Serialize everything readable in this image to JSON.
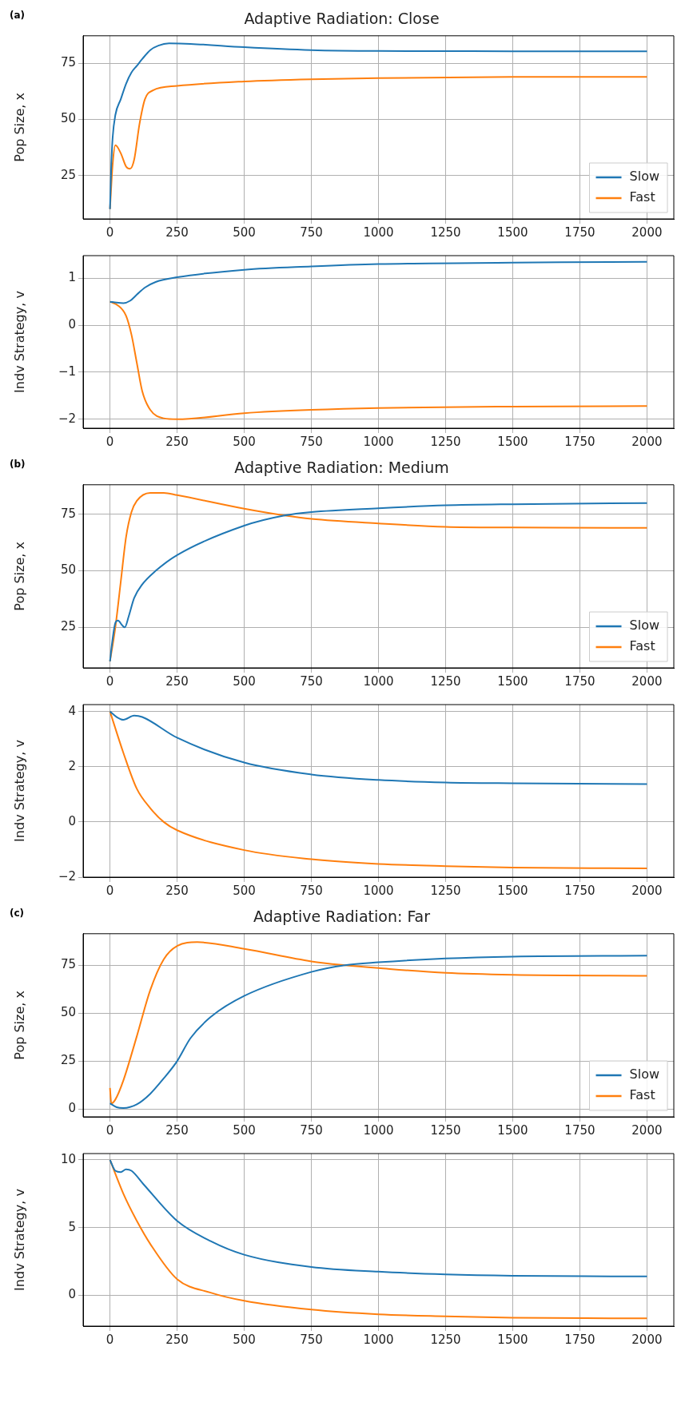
{
  "chart_data": [
    {
      "type": "line",
      "title": "Adaptive Radiation: Close",
      "ylabel": "Pop Size, x",
      "annotations": [
        "(a)"
      ],
      "xlim": [
        -100,
        2100
      ],
      "xticks": [
        0,
        250,
        500,
        750,
        1000,
        1250,
        1500,
        1750,
        2000
      ],
      "ylim": [
        5.6,
        87.4
      ],
      "yticks": [
        25,
        50,
        75
      ],
      "grid": true,
      "legend": "bottom right",
      "series": [
        {
          "name": "Slow",
          "color": "#1f77b4",
          "x": [
            0,
            5,
            10,
            20,
            40,
            60,
            80,
            100,
            120,
            150,
            180,
            220,
            300,
            500,
            750,
            1000,
            1500,
            2000
          ],
          "values": [
            10,
            30,
            42,
            52,
            59,
            66,
            71,
            74,
            77,
            81,
            83,
            84,
            83.8,
            82.3,
            81,
            80.6,
            80.5,
            80.5
          ]
        },
        {
          "name": "Fast",
          "color": "#ff7f0e",
          "x": [
            0,
            10,
            20,
            40,
            60,
            75,
            90,
            110,
            130,
            160,
            250,
            500,
            750,
            1000,
            1500,
            2000
          ],
          "values": [
            10,
            30,
            38.5,
            35,
            29,
            28,
            32,
            48,
            59,
            63,
            65,
            67,
            68,
            68.5,
            69,
            69
          ]
        }
      ]
    },
    {
      "type": "line",
      "ylabel": "Indv Strategy, v",
      "xlim": [
        -100,
        2100
      ],
      "xticks": [
        0,
        250,
        500,
        750,
        1000,
        1250,
        1500,
        1750,
        2000
      ],
      "ylim": [
        -2.19,
        1.48
      ],
      "yticks": [
        -2,
        -1,
        0,
        1
      ],
      "grid": true,
      "series": [
        {
          "color": "#1f77b4",
          "x": [
            0,
            25,
            50,
            75,
            100,
            130,
            170,
            250,
            500,
            750,
            1000,
            1500,
            2000
          ],
          "values": [
            0.5,
            0.48,
            0.47,
            0.52,
            0.65,
            0.8,
            0.92,
            1.02,
            1.18,
            1.25,
            1.3,
            1.33,
            1.35
          ]
        },
        {
          "color": "#ff7f0e",
          "x": [
            0,
            30,
            60,
            80,
            100,
            120,
            150,
            200,
            250,
            500,
            750,
            1000,
            1500,
            2000
          ],
          "values": [
            0.5,
            0.42,
            0.2,
            -0.2,
            -0.8,
            -1.4,
            -1.8,
            -1.98,
            -2.0,
            -1.87,
            -1.8,
            -1.76,
            -1.73,
            -1.72
          ]
        }
      ]
    },
    {
      "type": "line",
      "title": "Adaptive Radiation: Medium",
      "ylabel": "Pop Size, x",
      "annotations": [
        "(b)"
      ],
      "xlim": [
        -100,
        2100
      ],
      "xticks": [
        0,
        250,
        500,
        750,
        1000,
        1250,
        1500,
        1750,
        2000
      ],
      "ylim": [
        7.1,
        88.1
      ],
      "yticks": [
        25,
        50,
        75
      ],
      "grid": true,
      "legend": "bottom right",
      "series": [
        {
          "name": "Slow",
          "color": "#1f77b4",
          "x": [
            0,
            10,
            20,
            30,
            45,
            55,
            70,
            90,
            120,
            170,
            250,
            500,
            650,
            750,
            1000,
            1250,
            1500,
            2000
          ],
          "values": [
            10,
            20,
            27,
            28,
            26,
            25,
            30,
            38,
            44,
            50,
            57,
            70,
            74.5,
            76,
            77.7,
            79,
            79.5,
            80
          ]
        },
        {
          "name": "Fast",
          "color": "#ff7f0e",
          "x": [
            0,
            20,
            40,
            60,
            80,
            100,
            150,
            200,
            250,
            500,
            650,
            750,
            1000,
            1250,
            1500,
            2000
          ],
          "values": [
            10,
            25,
            45,
            65,
            76,
            81,
            84.5,
            84.5,
            83.5,
            77.5,
            74.5,
            73,
            71,
            69.5,
            69.2,
            69
          ]
        }
      ]
    },
    {
      "type": "line",
      "ylabel": "Indv Strategy, v",
      "xlim": [
        -100,
        2100
      ],
      "xticks": [
        0,
        250,
        500,
        750,
        1000,
        1250,
        1500,
        1750,
        2000
      ],
      "ylim": [
        -2.0,
        4.25
      ],
      "yticks": [
        -2,
        0,
        2,
        4
      ],
      "grid": true,
      "series": [
        {
          "color": "#1f77b4",
          "x": [
            0,
            25,
            50,
            90,
            120,
            250,
            500,
            750,
            1000,
            1250,
            1500,
            2000
          ],
          "values": [
            4,
            3.8,
            3.7,
            3.85,
            3.8,
            3.05,
            2.15,
            1.72,
            1.52,
            1.43,
            1.4,
            1.37
          ]
        },
        {
          "color": "#ff7f0e",
          "x": [
            0,
            50,
            100,
            150,
            200,
            250,
            500,
            750,
            1000,
            1250,
            1500,
            2000
          ],
          "values": [
            4,
            2.5,
            1.2,
            0.5,
            0,
            -0.3,
            -1.02,
            -1.35,
            -1.52,
            -1.6,
            -1.65,
            -1.68
          ]
        }
      ]
    },
    {
      "type": "line",
      "title": "Adaptive Radiation: Far",
      "ylabel": "Pop Size, x",
      "annotations": [
        "(c)"
      ],
      "xlim": [
        -100,
        2100
      ],
      "xticks": [
        0,
        250,
        500,
        750,
        1000,
        1250,
        1500,
        1750,
        2000
      ],
      "ylim": [
        -4,
        91.4
      ],
      "yticks": [
        0,
        25,
        50,
        75
      ],
      "grid": true,
      "legend": "bottom right",
      "series": [
        {
          "name": "Slow",
          "color": "#1f77b4",
          "x": [
            0,
            25,
            50,
            100,
            150,
            200,
            250,
            300,
            375,
            500,
            750,
            875,
            1000,
            1250,
            1500,
            2000
          ],
          "values": [
            3,
            1,
            0.6,
            2.5,
            8,
            16,
            25,
            37,
            48,
            59,
            71.5,
            75,
            76.5,
            78.5,
            79.5,
            80
          ]
        },
        {
          "name": "Fast",
          "color": "#ff7f0e",
          "x": [
            0,
            5,
            20,
            50,
            100,
            150,
            200,
            250,
            325,
            500,
            750,
            875,
            1000,
            1250,
            1500,
            2000
          ],
          "values": [
            11,
            3,
            5,
            15,
            38,
            62,
            78,
            85,
            87,
            83.5,
            77,
            75,
            73.5,
            71,
            70,
            69.5
          ]
        }
      ]
    },
    {
      "type": "line",
      "ylabel": "Indv Strategy, v",
      "xlim": [
        -100,
        2100
      ],
      "xticks": [
        0,
        250,
        500,
        750,
        1000,
        1250,
        1500,
        1750,
        2000
      ],
      "ylim": [
        -2.27,
        10.47
      ],
      "yticks": [
        0,
        5,
        10
      ],
      "grid": true,
      "series": [
        {
          "color": "#1f77b4",
          "x": [
            0,
            20,
            40,
            60,
            80,
            125,
            250,
            375,
            500,
            750,
            1000,
            1250,
            1500,
            2000
          ],
          "values": [
            10,
            9.2,
            9.1,
            9.3,
            9.2,
            8.2,
            5.5,
            4,
            3,
            2.1,
            1.75,
            1.55,
            1.45,
            1.4
          ]
        },
        {
          "color": "#ff7f0e",
          "x": [
            0,
            50,
            100,
            150,
            250,
            375,
            500,
            750,
            1000,
            1250,
            1500,
            2000
          ],
          "values": [
            10,
            7.5,
            5.5,
            3.8,
            1.2,
            0.2,
            -0.4,
            -1.05,
            -1.4,
            -1.55,
            -1.65,
            -1.7
          ]
        }
      ]
    }
  ]
}
